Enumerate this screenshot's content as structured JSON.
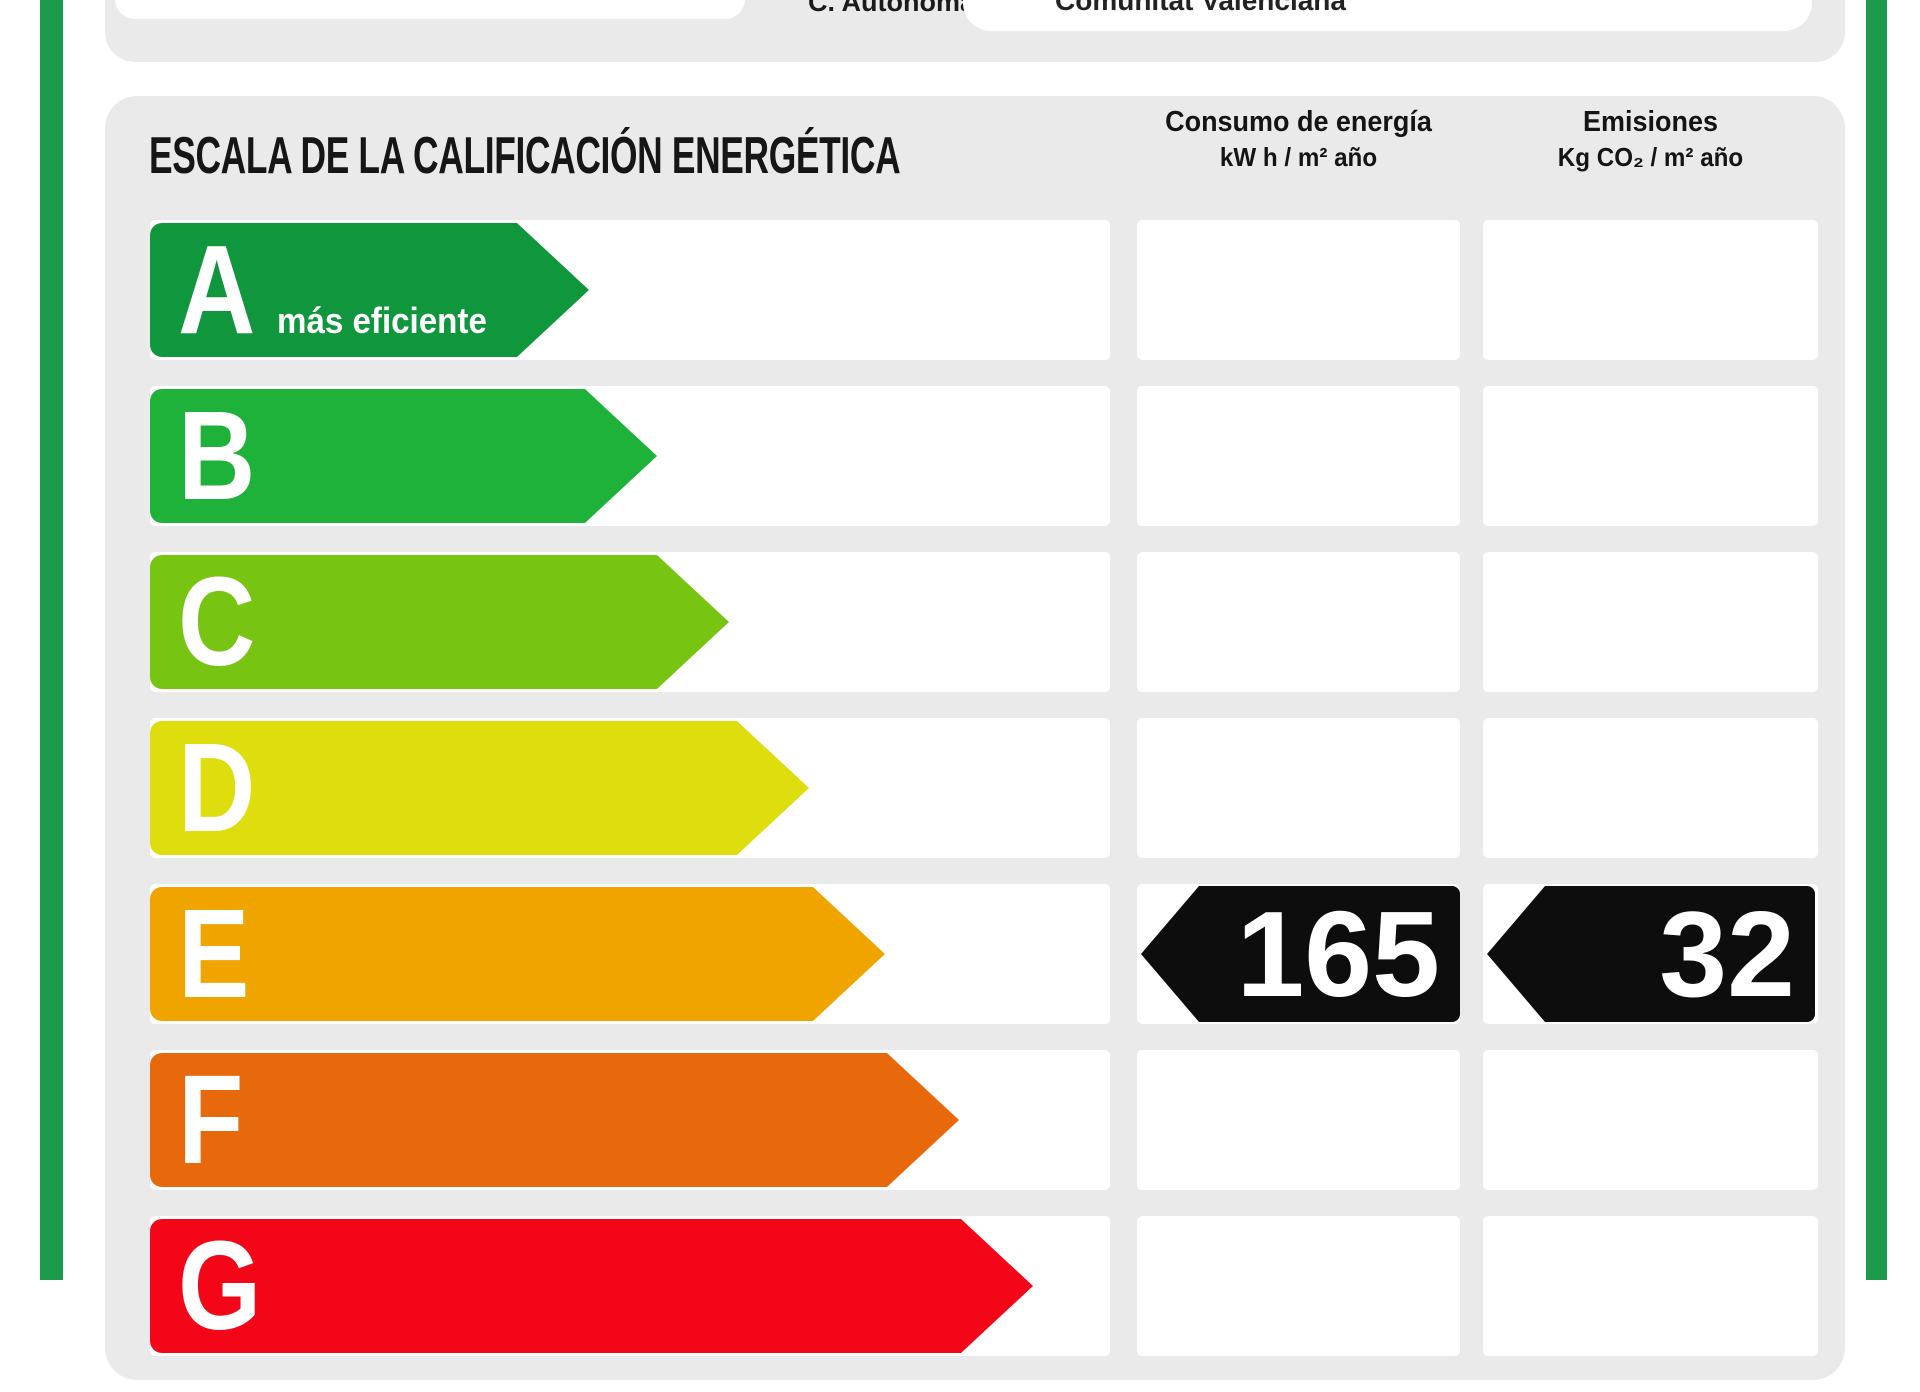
{
  "page": {
    "border_color": "#1c9b4d",
    "panel_color": "#eaeaea"
  },
  "form": {
    "autonoma_label": "C. Autónoma",
    "autonoma_value": "Comunitat Valenciana"
  },
  "scale": {
    "title": "ESCALA DE LA CALIFICACIÓN ENERGÉTICA",
    "consumo_header_line1": "Consumo de energía",
    "consumo_header_line2": "kW h / m² año",
    "emisiones_header_line1": "Emisiones",
    "emisiones_header_line2": "Kg CO₂ / m² año",
    "rows": [
      {
        "letter": "A",
        "label": "más eficiente",
        "color": "#10963c",
        "tip": 589
      },
      {
        "letter": "B",
        "color": "#1eb23a",
        "tip": 657
      },
      {
        "letter": "C",
        "color": "#77c413",
        "tip": 729
      },
      {
        "letter": "D",
        "color": "#dedd0d",
        "tip": 809
      },
      {
        "letter": "E",
        "color": "#f0a400",
        "tip": 885,
        "consumo": "165",
        "emisiones": "32"
      },
      {
        "letter": "F",
        "color": "#e8690c",
        "tip": 959
      },
      {
        "letter": "G",
        "color": "#f30617",
        "tip": 1033
      }
    ]
  },
  "chart_data": {
    "type": "bar",
    "title": "ESCALA DE LA CALIFICACIÓN ENERGÉTICA",
    "categories": [
      "A",
      "B",
      "C",
      "D",
      "E",
      "F",
      "G"
    ],
    "series": [
      {
        "name": "Consumo de energía kW h / m² año",
        "values": [
          null,
          null,
          null,
          null,
          165,
          null,
          null
        ]
      },
      {
        "name": "Emisiones Kg CO₂ / m² año",
        "values": [
          null,
          null,
          null,
          null,
          32,
          null,
          null
        ]
      }
    ],
    "rating": "E",
    "annotations": [
      "más eficiente"
    ],
    "legend_position": "none",
    "grid": false
  }
}
